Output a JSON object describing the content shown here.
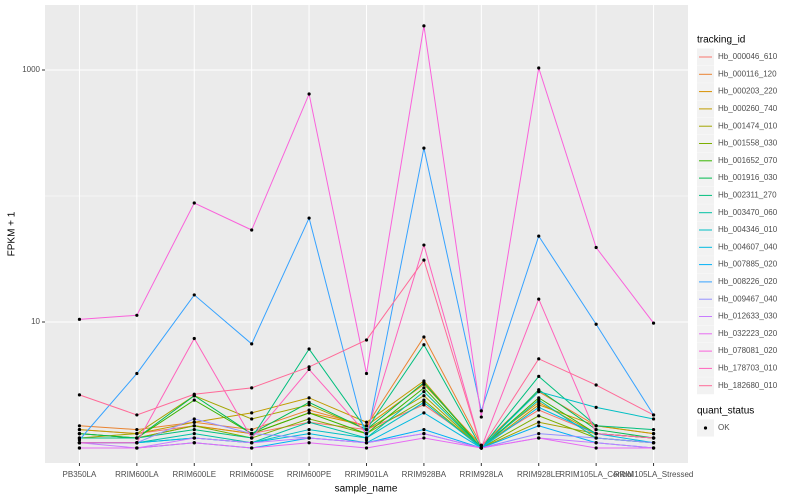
{
  "chart_data": {
    "type": "line",
    "log_y": true,
    "grid": true,
    "x_label": "sample_name",
    "y_label": "FPKM + 1",
    "legend_title": "tracking_id",
    "legend_position": "right",
    "point_legend_title": "quant_status",
    "point_legend_entry": "OK",
    "point_color": "#000000",
    "categories": [
      "PB350LA",
      "RRIM600LA",
      "RRIM600LE",
      "RRIM600SE",
      "RRIM600PE",
      "RRIM901LA",
      "RRIM928BA",
      "RRIM928LA",
      "RRIM928LE",
      "RRIM105LA_Control",
      "RRIM105LA_Stressed"
    ],
    "ylim": [
      0.76,
      3280
    ],
    "yticks": [
      10,
      1000
    ],
    "y_minor_ticks": [
      100
    ],
    "series": [
      {
        "name": "Hb_000046_610",
        "color": "#F8766D",
        "values": [
          1.4,
          1.3,
          1.5,
          1.3,
          1.6,
          1.4,
          2.2,
          1.05,
          2.0,
          1.3,
          1.2
        ]
      },
      {
        "name": "Hb_000116_120",
        "color": "#EA8331",
        "values": [
          1.5,
          1.4,
          1.6,
          1.4,
          2.0,
          1.5,
          7.6,
          1.05,
          2.8,
          1.5,
          1.3
        ]
      },
      {
        "name": "Hb_000203_220",
        "color": "#D89000",
        "values": [
          1.3,
          1.2,
          1.5,
          1.3,
          1.9,
          1.5,
          3.2,
          1.05,
          2.3,
          1.3,
          1.2
        ]
      },
      {
        "name": "Hb_000260_740",
        "color": "#C09B00",
        "values": [
          1.4,
          1.3,
          1.6,
          1.9,
          2.5,
          1.6,
          3.4,
          1.0,
          2.2,
          1.5,
          1.3
        ]
      },
      {
        "name": "Hb_001474_010",
        "color": "#A3A500",
        "values": [
          1.2,
          1.3,
          2.6,
          1.7,
          2.2,
          1.4,
          2.6,
          1.0,
          1.6,
          1.3,
          1.2
        ]
      },
      {
        "name": "Hb_001558_030",
        "color": "#7CAE00",
        "values": [
          1.3,
          1.2,
          1.5,
          1.2,
          1.7,
          1.3,
          2.4,
          1.0,
          1.8,
          1.2,
          1.1
        ]
      },
      {
        "name": "Hb_001652_070",
        "color": "#39B600",
        "values": [
          1.2,
          1.2,
          2.4,
          1.3,
          1.9,
          1.3,
          3.0,
          1.0,
          2.5,
          1.3,
          1.2
        ]
      },
      {
        "name": "Hb_001916_030",
        "color": "#00BB4E",
        "values": [
          1.3,
          1.2,
          2.6,
          1.3,
          2.3,
          1.4,
          3.3,
          1.0,
          2.9,
          1.4,
          1.2
        ]
      },
      {
        "name": "Hb_002311_270",
        "color": "#00BF7D",
        "values": [
          1.2,
          1.2,
          1.4,
          1.2,
          6.1,
          1.4,
          6.6,
          1.0,
          3.7,
          1.5,
          1.4
        ]
      },
      {
        "name": "Hb_003470_060",
        "color": "#00C1A3",
        "values": [
          1.1,
          1.1,
          1.3,
          1.1,
          1.6,
          1.2,
          2.8,
          1.0,
          2.4,
          1.2,
          1.1
        ]
      },
      {
        "name": "Hb_004346_010",
        "color": "#00BFC4",
        "values": [
          1.1,
          1.1,
          1.2,
          1.1,
          1.4,
          1.2,
          2.3,
          1.0,
          2.8,
          2.1,
          1.7
        ]
      },
      {
        "name": "Hb_004607_040",
        "color": "#00BAE0",
        "values": [
          1.1,
          1.1,
          1.2,
          1.1,
          1.3,
          1.1,
          1.9,
          1.0,
          2.1,
          1.3,
          1.1
        ]
      },
      {
        "name": "Hb_007885_020",
        "color": "#00B0F6",
        "values": [
          1.0,
          1.0,
          1.1,
          1.0,
          1.2,
          1.1,
          1.4,
          1.0,
          1.5,
          1.1,
          1.0
        ]
      },
      {
        "name": "Hb_008226_020",
        "color": "#35A2FF",
        "values": [
          1.16,
          3.9,
          16.4,
          6.7,
          66.8,
          1.16,
          240,
          1.97,
          48,
          9.6,
          1.83
        ]
      },
      {
        "name": "Hb_009467_040",
        "color": "#9590FF",
        "values": [
          1.1,
          1.1,
          1.7,
          1.3,
          1.2,
          1.1,
          1.3,
          1.0,
          1.3,
          1.2,
          1.1
        ]
      },
      {
        "name": "Hb_012633_030",
        "color": "#C77CFF",
        "values": [
          1.1,
          1.0,
          1.2,
          1.1,
          1.2,
          1.1,
          1.3,
          1.0,
          1.2,
          1.1,
          1.0
        ]
      },
      {
        "name": "Hb_032223_020",
        "color": "#E76BF3",
        "values": [
          1.0,
          1.0,
          1.1,
          1.0,
          1.1,
          1.0,
          1.2,
          1.0,
          1.2,
          1.0,
          1.0
        ]
      },
      {
        "name": "Hb_078081_020",
        "color": "#FA62DB",
        "values": [
          10.5,
          11.3,
          88,
          53.7,
          645,
          3.9,
          2240,
          1.76,
          1037,
          39,
          9.8
        ]
      },
      {
        "name": "Hb_178703_010",
        "color": "#FF62BC",
        "values": [
          1.1,
          1.1,
          7.4,
          1.2,
          4.2,
          1.3,
          40.8,
          1.0,
          15.2,
          1.3,
          1.2
        ]
      },
      {
        "name": "Hb_182680_010",
        "color": "#FF6A98",
        "values": [
          2.64,
          1.83,
          2.67,
          3.0,
          4.4,
          7.2,
          31,
          1.0,
          5.1,
          3.16,
          1.83
        ]
      }
    ]
  }
}
